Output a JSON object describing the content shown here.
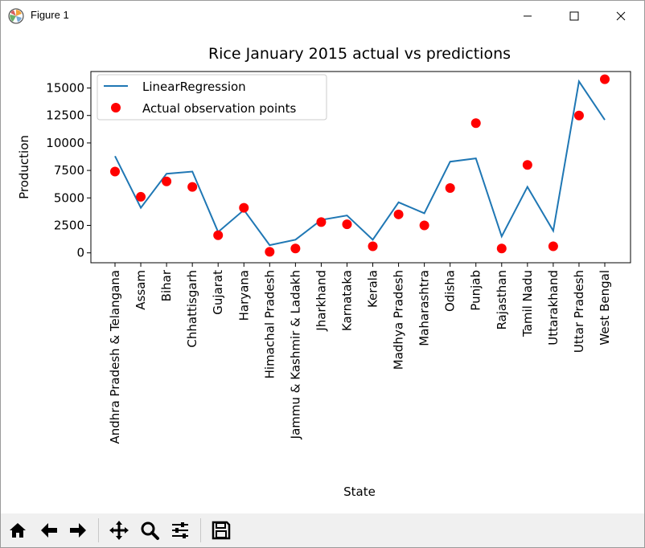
{
  "window": {
    "title": "Figure 1"
  },
  "toolbar": {
    "buttons": [
      {
        "name": "home-button",
        "icon": "home-icon"
      },
      {
        "name": "back-button",
        "icon": "arrow-left-icon"
      },
      {
        "name": "forward-button",
        "icon": "arrow-right-icon"
      },
      {
        "name": "pan-button",
        "icon": "move-icon"
      },
      {
        "name": "zoom-button",
        "icon": "magnifier-icon"
      },
      {
        "name": "configure-subplots-button",
        "icon": "sliders-icon"
      },
      {
        "name": "save-button",
        "icon": "floppy-disk-icon"
      }
    ]
  },
  "chart_data": {
    "type": "line",
    "title": "Rice January 2015 actual vs predictions",
    "xlabel": "State",
    "ylabel": "Production",
    "ylim": [
      -900,
      16500
    ],
    "yticks": [
      0,
      2500,
      5000,
      7500,
      10000,
      12500,
      15000
    ],
    "ytick_labels": [
      "0",
      "2500",
      "5000",
      "7500",
      "10000",
      "12500",
      "15000"
    ],
    "grid": false,
    "legend_position": "upper-left",
    "categories": [
      "Andhra Pradesh & Telangana",
      "Assam",
      "Bihar",
      "Chhattisgarh",
      "Gujarat",
      "Haryana",
      "Himachal Pradesh",
      "Jammu & Kashmir & Ladakh",
      "Jharkhand",
      "Karnataka",
      "Kerala",
      "Madhya Pradesh",
      "Maharashtra",
      "Odisha",
      "Punjab",
      "Rajasthan",
      "Tamil Nadu",
      "Uttarakhand",
      "Uttar Pradesh",
      "West Bengal"
    ],
    "series": [
      {
        "name": "LinearRegression",
        "kind": "line",
        "color": "#1f77b4",
        "values": [
          8800,
          4100,
          7200,
          7400,
          1900,
          3900,
          700,
          1200,
          3000,
          3400,
          1200,
          4600,
          3600,
          8300,
          8600,
          1500,
          6000,
          2000,
          15600,
          12100
        ]
      },
      {
        "name": "Actual observation points",
        "kind": "scatter",
        "color": "#ff0000",
        "values": [
          7400,
          5100,
          6500,
          6000,
          1600,
          4100,
          100,
          400,
          2800,
          2600,
          600,
          3500,
          2500,
          5900,
          11800,
          400,
          8000,
          600,
          12500,
          15800
        ]
      }
    ]
  }
}
